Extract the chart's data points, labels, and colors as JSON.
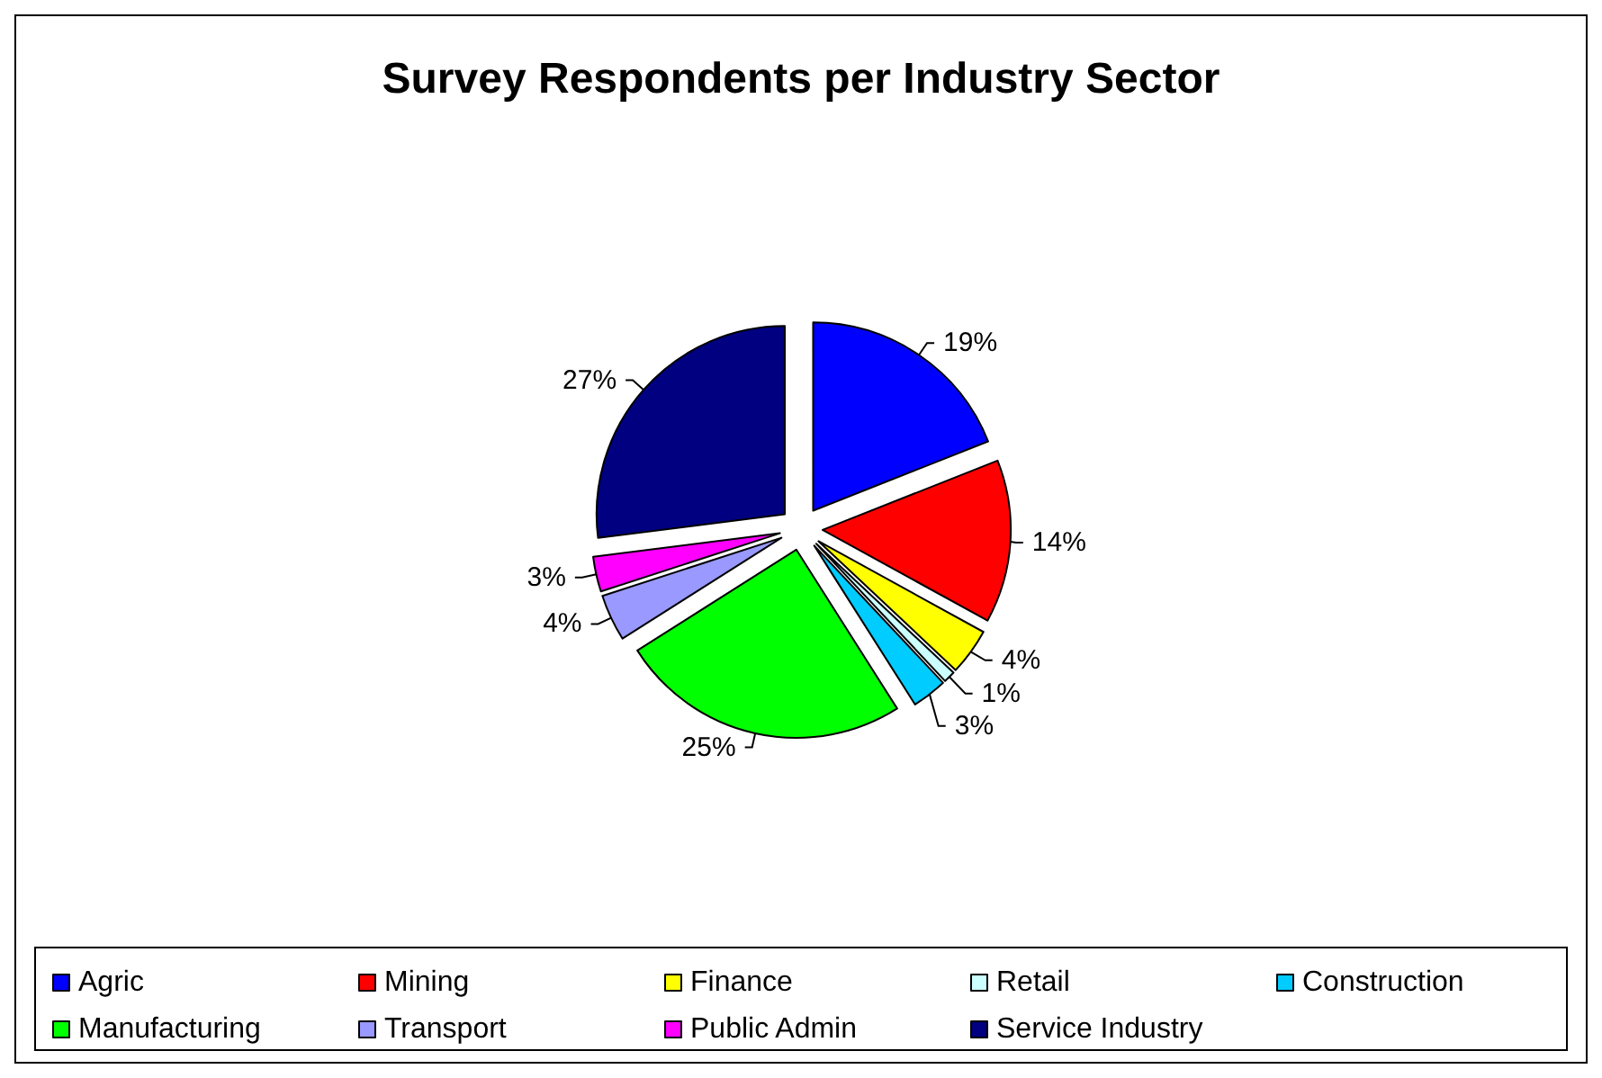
{
  "chart_data": {
    "type": "pie",
    "title": "Survey Respondents per Industry Sector",
    "categories": [
      "Agric",
      "Mining",
      "Finance",
      "Retail",
      "Construction",
      "Manufacturing",
      "Transport",
      "Public Admin",
      "Service Industry"
    ],
    "values": [
      19,
      14,
      4,
      1,
      3,
      25,
      4,
      3,
      27
    ],
    "colors": [
      "#0000ff",
      "#ff0000",
      "#ffff00",
      "#ccffff",
      "#00ccff",
      "#00ff00",
      "#9999ff",
      "#ff00ff",
      "#000080"
    ],
    "value_labels": [
      "19%",
      "14%",
      "4%",
      "1%",
      "3%",
      "25%",
      "4%",
      "3%",
      "27%"
    ],
    "legend": "bottom"
  }
}
